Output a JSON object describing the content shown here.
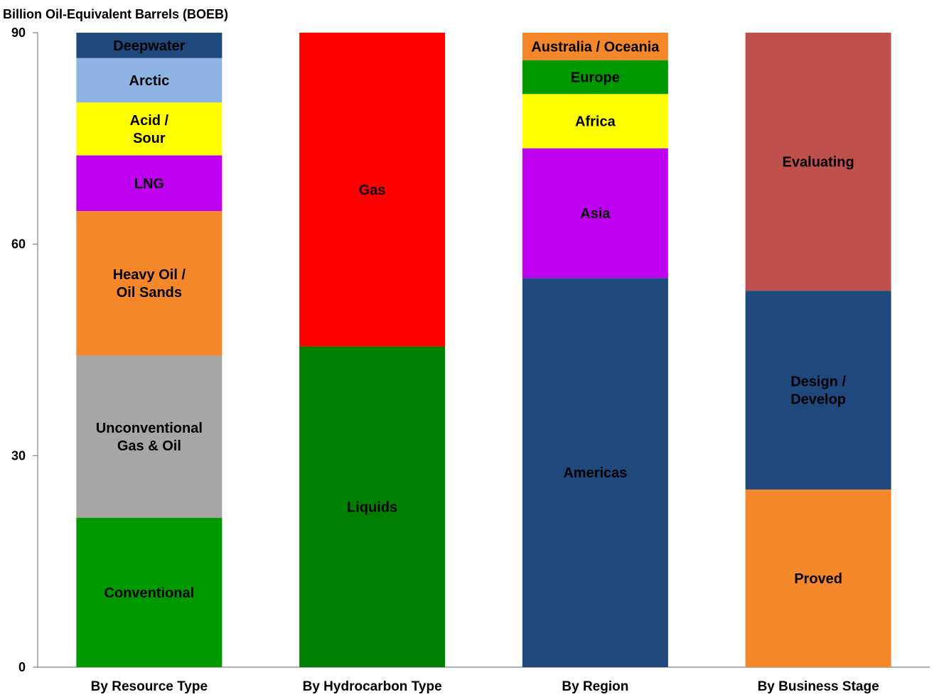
{
  "chart_data": {
    "type": "bar",
    "stacked": true,
    "title": "",
    "ylabel": "Billion Oil-Equivalent Barrels (BOEB)",
    "xlabel": "",
    "ylim": [
      0,
      90
    ],
    "yticks": [
      0,
      30,
      60,
      90
    ],
    "grid": false,
    "categories": [
      "By Resource Type",
      "By Hydrocarbon Type",
      "By Region",
      "By Business Stage"
    ],
    "stacks": [
      {
        "category": "By Resource Type",
        "segments": [
          {
            "label": [
              "Conventional"
            ],
            "value": 21.2,
            "color": "#009900"
          },
          {
            "label": [
              "Unconventional",
              "Gas & Oil"
            ],
            "value": 23.0,
            "color": "#A6A6A6"
          },
          {
            "label": [
              "Heavy Oil /",
              "Oil Sands"
            ],
            "value": 20.5,
            "color": "#F5872B"
          },
          {
            "label": [
              "LNG"
            ],
            "value": 7.9,
            "color": "#C000F0"
          },
          {
            "label": [
              "Acid /",
              "Sour"
            ],
            "value": 7.5,
            "color": "#FFFF00"
          },
          {
            "label": [
              "Arctic"
            ],
            "value": 6.3,
            "color": "#8DB4E2"
          },
          {
            "label": [
              "Deepwater"
            ],
            "value": 3.6,
            "color": "#1F497D"
          }
        ]
      },
      {
        "category": "By Hydrocarbon Type",
        "segments": [
          {
            "label": [
              "Liquids"
            ],
            "value": 45.5,
            "color": "#008000"
          },
          {
            "label": [
              "Gas"
            ],
            "value": 44.5,
            "color": "#FF0000"
          }
        ]
      },
      {
        "category": "By Region",
        "segments": [
          {
            "label": [
              "Americas"
            ],
            "value": 55.2,
            "color": "#1F497D"
          },
          {
            "label": [
              "Asia"
            ],
            "value": 18.4,
            "color": "#C000F0"
          },
          {
            "label": [
              "Africa"
            ],
            "value": 7.7,
            "color": "#FFFF00"
          },
          {
            "label": [
              "Europe"
            ],
            "value": 4.8,
            "color": "#009900"
          },
          {
            "label": [
              "Australia / Oceania"
            ],
            "value": 3.9,
            "color": "#F5872B"
          }
        ]
      },
      {
        "category": "By Business Stage",
        "segments": [
          {
            "label": [
              "Proved"
            ],
            "value": 25.2,
            "color": "#F5872B"
          },
          {
            "label": [
              "Design /",
              "Develop"
            ],
            "value": 28.2,
            "color": "#1F497D"
          },
          {
            "label": [
              "Evaluating"
            ],
            "value": 36.6,
            "color": "#C0504D"
          }
        ]
      }
    ]
  }
}
